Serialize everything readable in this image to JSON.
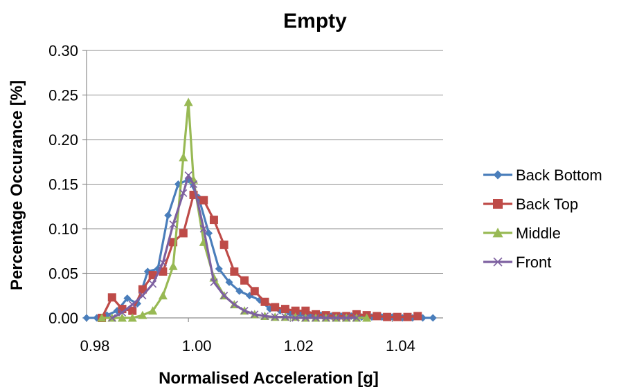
{
  "chart_data": {
    "type": "line",
    "title": "Empty",
    "xlabel": "Normalised Acceleration [g]",
    "ylabel": "Percentage Occurance [%]",
    "xlim": [
      0.98,
      1.05
    ],
    "ylim": [
      0,
      0.3
    ],
    "xticks": [
      "0.98",
      "1.00",
      "1.02",
      "1.04"
    ],
    "xtick_values": [
      0.98,
      1.0,
      1.02,
      1.04
    ],
    "yticks": [
      "0.00",
      "0.05",
      "0.10",
      "0.15",
      "0.20",
      "0.25",
      "0.30"
    ],
    "ytick_values": [
      0,
      0.05,
      0.1,
      0.15,
      0.2,
      0.25,
      0.3
    ],
    "grid": "horizontal",
    "legend_position": "right",
    "series": [
      {
        "name": "Back Bottom",
        "color": "#4a7ebb",
        "marker": "diamond",
        "x": [
          0.98,
          0.982,
          0.984,
          0.986,
          0.988,
          0.99,
          0.992,
          0.994,
          0.996,
          0.998,
          1.0,
          1.002,
          1.004,
          1.006,
          1.008,
          1.01,
          1.012,
          1.014,
          1.016,
          1.018,
          1.02,
          1.022,
          1.024,
          1.026,
          1.028,
          1.03,
          1.032,
          1.034,
          1.036,
          1.038,
          1.04,
          1.042,
          1.044,
          1.046,
          1.048
        ],
        "y": [
          0.0,
          0.0,
          0.003,
          0.008,
          0.022,
          0.016,
          0.052,
          0.055,
          0.115,
          0.15,
          0.155,
          0.135,
          0.095,
          0.055,
          0.04,
          0.03,
          0.025,
          0.02,
          0.01,
          0.008,
          0.005,
          0.004,
          0.003,
          0.003,
          0.002,
          0.002,
          0.002,
          0.001,
          0.001,
          0.001,
          0.001,
          0.0,
          0.0,
          0.0,
          0.0
        ]
      },
      {
        "name": "Back Top",
        "color": "#be4b48",
        "marker": "square",
        "x": [
          0.983,
          0.985,
          0.987,
          0.989,
          0.991,
          0.993,
          0.995,
          0.997,
          0.999,
          1.001,
          1.003,
          1.005,
          1.007,
          1.009,
          1.011,
          1.013,
          1.015,
          1.017,
          1.019,
          1.021,
          1.023,
          1.025,
          1.027,
          1.029,
          1.031,
          1.033,
          1.035,
          1.037,
          1.039,
          1.041,
          1.043,
          1.045
        ],
        "y": [
          0.0,
          0.023,
          0.01,
          0.008,
          0.032,
          0.048,
          0.052,
          0.085,
          0.095,
          0.138,
          0.132,
          0.11,
          0.082,
          0.052,
          0.042,
          0.03,
          0.018,
          0.012,
          0.01,
          0.008,
          0.008,
          0.004,
          0.003,
          0.002,
          0.002,
          0.004,
          0.003,
          0.002,
          0.001,
          0.001,
          0.001,
          0.002
        ]
      },
      {
        "name": "Middle",
        "color": "#98b954",
        "marker": "triangle",
        "x": [
          0.983,
          0.985,
          0.987,
          0.989,
          0.991,
          0.993,
          0.995,
          0.997,
          0.999,
          1.0,
          1.001,
          1.003,
          1.005,
          1.007,
          1.009,
          1.011,
          1.013,
          1.015,
          1.017,
          1.019,
          1.021,
          1.023,
          1.025,
          1.027,
          1.029,
          1.031,
          1.033,
          1.035
        ],
        "y": [
          0.0,
          0.0,
          0.0,
          0.0,
          0.003,
          0.008,
          0.025,
          0.058,
          0.18,
          0.242,
          0.155,
          0.085,
          0.045,
          0.025,
          0.015,
          0.008,
          0.004,
          0.002,
          0.001,
          0.001,
          0.001,
          0.0,
          0.0,
          0.0,
          0.0,
          0.0,
          0.0,
          0.0
        ]
      },
      {
        "name": "Front",
        "color": "#7d60a0",
        "marker": "x",
        "x": [
          0.985,
          0.987,
          0.989,
          0.991,
          0.993,
          0.995,
          0.997,
          0.999,
          1.0,
          1.001,
          1.003,
          1.005,
          1.007,
          1.009,
          1.011,
          1.013,
          1.015,
          1.017,
          1.019,
          1.021,
          1.023,
          1.025,
          1.027,
          1.029,
          1.031,
          1.033
        ],
        "y": [
          0.0,
          0.006,
          0.015,
          0.025,
          0.038,
          0.062,
          0.105,
          0.14,
          0.16,
          0.15,
          0.1,
          0.04,
          0.025,
          0.015,
          0.008,
          0.004,
          0.002,
          0.001,
          0.001,
          0.0,
          0.0,
          0.0,
          0.0,
          0.0,
          0.0,
          0.0
        ]
      }
    ]
  }
}
